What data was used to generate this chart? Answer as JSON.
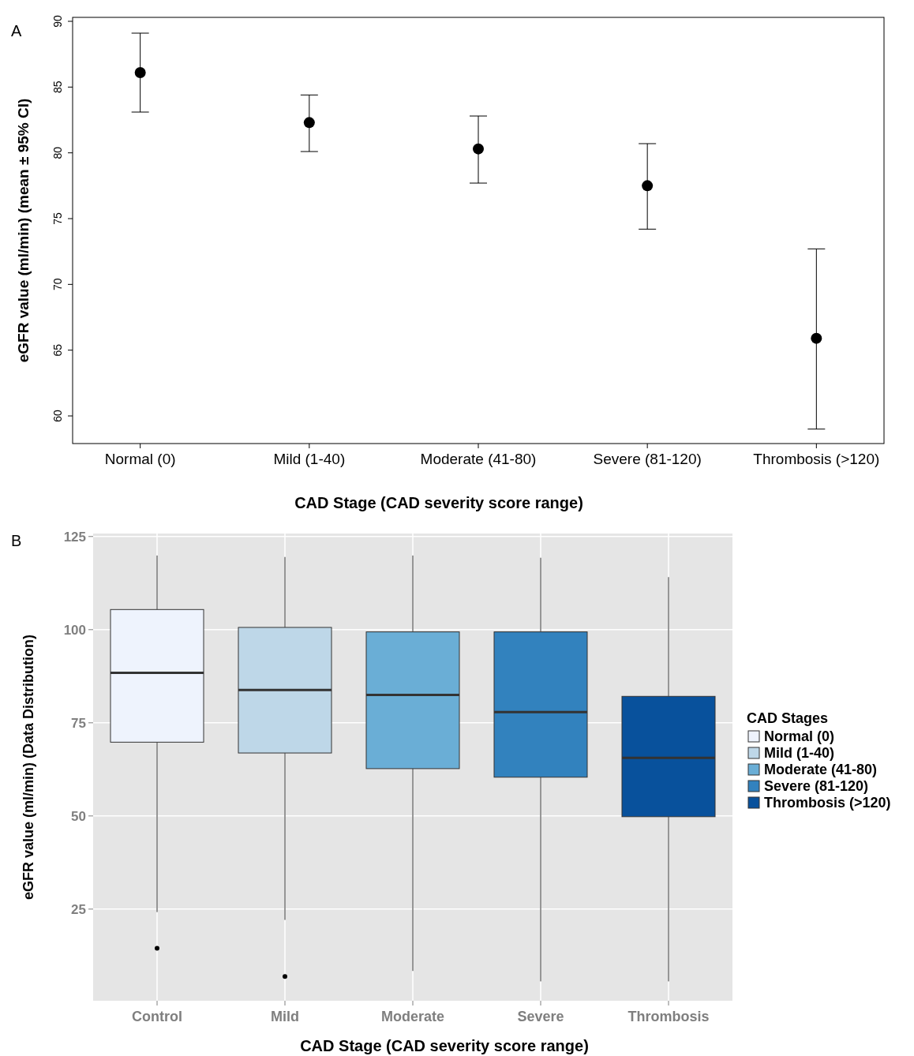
{
  "chart_data": [
    {
      "type": "scatter",
      "annotations": [
        "A"
      ],
      "xlabel": "CAD Stage (CAD severity score range)",
      "ylabel": "eGFR value (ml/min) (mean ± 95% CI)",
      "categories": [
        "Normal (0)",
        "Mild (1-40)",
        "Moderate (41-80)",
        "Severe (81-120)",
        "Thrombosis (>120)"
      ],
      "series": [
        {
          "color": "#000000",
          "values": [
            86.1,
            82.3,
            80.3,
            77.5,
            65.9
          ],
          "errors": [
            [
              83.1,
              89.1
            ],
            [
              80.1,
              84.4
            ],
            [
              77.7,
              82.8
            ],
            [
              74.2,
              80.7
            ],
            [
              59.0,
              72.7
            ]
          ]
        }
      ],
      "marker": "circle",
      "ylim": [
        57.9,
        90.3
      ],
      "yticks": [
        60,
        65,
        70,
        75,
        80,
        85,
        90
      ],
      "grid": false
    },
    {
      "type": "box",
      "annotations": [
        "B"
      ],
      "xlabel": "CAD Stage (CAD severity score range)",
      "ylabel": "eGFR value (ml/min) (Data Distribution)",
      "legend_title": "CAD Stages",
      "legend": "right",
      "categories": [
        "Control",
        "Mild",
        "Moderate",
        "Severe",
        "Thrombosis"
      ],
      "series": [
        {
          "name": "Normal (0)",
          "color": "#eef3fd",
          "boxes": [
            {
              "low": 24.2,
              "q1": 69.8,
              "median": 88.4,
              "q3": 105.4,
              "high": 119.9,
              "outliers": [
                14.5
              ]
            },
            null,
            null,
            null,
            null
          ]
        },
        {
          "name": "Mild (1-40)",
          "color": "#bed7e8",
          "boxes": [
            null,
            {
              "low": 22.1,
              "q1": 66.9,
              "median": 83.8,
              "q3": 100.6,
              "high": 119.5,
              "outliers": [
                6.9
              ]
            },
            null,
            null,
            null
          ]
        },
        {
          "name": "Moderate (41-80)",
          "color": "#6aaed6",
          "boxes": [
            null,
            null,
            {
              "low": 8.4,
              "q1": 62.7,
              "median": 82.5,
              "q3": 99.4,
              "high": 119.9
            },
            null,
            null
          ]
        },
        {
          "name": "Severe (81-120)",
          "color": "#3282be",
          "boxes": [
            null,
            null,
            null,
            {
              "low": 5.6,
              "q1": 60.4,
              "median": 77.9,
              "q3": 99.4,
              "high": 119.3
            },
            null
          ]
        },
        {
          "name": "Thrombosis (>120)",
          "color": "#08519c",
          "boxes": [
            null,
            null,
            null,
            null,
            {
              "low": 5.6,
              "q1": 49.8,
              "median": 65.6,
              "q3": 82.1,
              "high": 114.1
            }
          ]
        }
      ],
      "ylim": [
        0.4,
        125.8
      ],
      "yticks": [
        25,
        50,
        75,
        100,
        125
      ],
      "grid": true
    }
  ]
}
